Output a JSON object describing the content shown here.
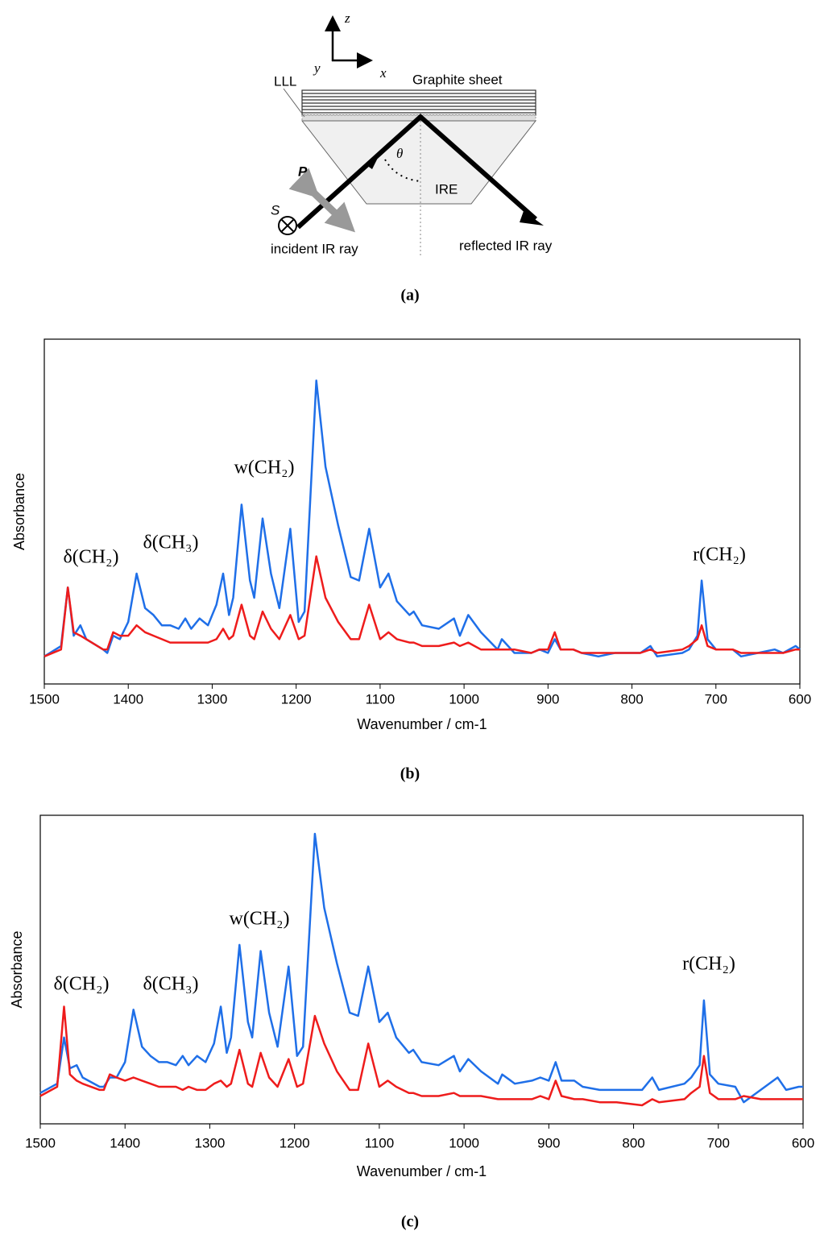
{
  "diagram": {
    "axis_z": "z",
    "axis_y": "y",
    "axis_x": "x",
    "graphite": "Graphite sheet",
    "lll": "LLL",
    "theta": "θ",
    "p": "P",
    "s": "S",
    "ire": "IRE",
    "incident": "incident IR ray",
    "reflected": "reflected IR ray"
  },
  "captions": [
    "(a)",
    "(b)",
    "(c)"
  ],
  "chart_data": [
    {
      "type": "line",
      "y_label": "Absorbance",
      "x_label": "Wavenumber / cm-1",
      "annotations": [
        "δ(CH₂)",
        "δ(CH₃)",
        "w(CH₂)",
        "r(CH₂)"
      ],
      "xlim": [
        1500,
        600
      ],
      "xticks": [
        1500,
        1400,
        1300,
        1200,
        1100,
        1000,
        900,
        800,
        700,
        600
      ],
      "ylim": [
        0,
        1
      ],
      "grid": false,
      "x": [
        1500,
        1480,
        1472,
        1465,
        1457,
        1450,
        1430,
        1425,
        1418,
        1410,
        1400,
        1390,
        1380,
        1370,
        1360,
        1350,
        1340,
        1332,
        1325,
        1315,
        1305,
        1295,
        1287,
        1280,
        1275,
        1265,
        1255,
        1250,
        1240,
        1230,
        1220,
        1207,
        1197,
        1190,
        1176,
        1165,
        1150,
        1135,
        1125,
        1113,
        1100,
        1090,
        1080,
        1065,
        1060,
        1050,
        1030,
        1012,
        1005,
        995,
        980,
        960,
        955,
        940,
        920,
        910,
        900,
        892,
        885,
        870,
        860,
        840,
        820,
        790,
        778,
        770,
        740,
        732,
        722,
        717,
        710,
        700,
        680,
        670,
        650,
        630,
        620,
        605,
        600
      ],
      "series": [
        {
          "color": "#1f6fe8",
          "values": [
            0.08,
            0.11,
            0.28,
            0.14,
            0.17,
            0.13,
            0.1,
            0.09,
            0.14,
            0.13,
            0.18,
            0.32,
            0.22,
            0.2,
            0.17,
            0.17,
            0.16,
            0.19,
            0.16,
            0.19,
            0.17,
            0.23,
            0.32,
            0.2,
            0.25,
            0.52,
            0.3,
            0.25,
            0.48,
            0.32,
            0.22,
            0.45,
            0.18,
            0.21,
            0.88,
            0.63,
            0.46,
            0.31,
            0.3,
            0.45,
            0.28,
            0.32,
            0.24,
            0.2,
            0.21,
            0.17,
            0.16,
            0.19,
            0.14,
            0.2,
            0.15,
            0.1,
            0.13,
            0.09,
            0.09,
            0.1,
            0.09,
            0.13,
            0.1,
            0.1,
            0.09,
            0.08,
            0.09,
            0.09,
            0.11,
            0.08,
            0.09,
            0.1,
            0.14,
            0.3,
            0.13,
            0.1,
            0.1,
            0.08,
            0.09,
            0.1,
            0.09,
            0.11,
            0.1
          ]
        },
        {
          "color": "#ee1c1c",
          "values": [
            0.08,
            0.1,
            0.28,
            0.15,
            0.14,
            0.13,
            0.1,
            0.1,
            0.15,
            0.14,
            0.14,
            0.17,
            0.15,
            0.14,
            0.13,
            0.12,
            0.12,
            0.12,
            0.12,
            0.12,
            0.12,
            0.13,
            0.16,
            0.13,
            0.14,
            0.23,
            0.14,
            0.13,
            0.21,
            0.16,
            0.13,
            0.2,
            0.13,
            0.14,
            0.37,
            0.25,
            0.18,
            0.13,
            0.13,
            0.23,
            0.13,
            0.15,
            0.13,
            0.12,
            0.12,
            0.11,
            0.11,
            0.12,
            0.11,
            0.12,
            0.1,
            0.1,
            0.1,
            0.1,
            0.09,
            0.1,
            0.1,
            0.15,
            0.1,
            0.1,
            0.09,
            0.09,
            0.09,
            0.09,
            0.1,
            0.09,
            0.1,
            0.11,
            0.13,
            0.17,
            0.11,
            0.1,
            0.1,
            0.09,
            0.09,
            0.09,
            0.09,
            0.1,
            0.1
          ]
        }
      ]
    },
    {
      "type": "line",
      "y_label": "Absorbance",
      "x_label": "Wavenumber  / cm-1",
      "annotations": [
        "δ(CH₂)",
        "δ(CH₃)",
        "w(CH₂)",
        "r(CH₂)"
      ],
      "xlim": [
        1500,
        600
      ],
      "xticks": [
        1500,
        1400,
        1300,
        1200,
        1100,
        1000,
        900,
        800,
        700,
        600
      ],
      "ylim": [
        0,
        1
      ],
      "grid": false,
      "x": [
        1500,
        1480,
        1472,
        1465,
        1457,
        1450,
        1430,
        1425,
        1418,
        1410,
        1400,
        1390,
        1380,
        1370,
        1360,
        1350,
        1340,
        1332,
        1325,
        1315,
        1305,
        1295,
        1287,
        1280,
        1275,
        1265,
        1255,
        1250,
        1240,
        1230,
        1220,
        1207,
        1197,
        1190,
        1176,
        1165,
        1150,
        1135,
        1125,
        1113,
        1100,
        1090,
        1080,
        1065,
        1060,
        1050,
        1030,
        1012,
        1005,
        995,
        980,
        960,
        955,
        940,
        920,
        910,
        900,
        892,
        885,
        870,
        860,
        840,
        820,
        790,
        778,
        770,
        740,
        732,
        722,
        717,
        710,
        700,
        680,
        670,
        650,
        630,
        620,
        605,
        600
      ],
      "series": [
        {
          "color": "#1f6fe8",
          "values": [
            0.1,
            0.13,
            0.28,
            0.18,
            0.19,
            0.15,
            0.12,
            0.12,
            0.15,
            0.15,
            0.2,
            0.37,
            0.25,
            0.22,
            0.2,
            0.2,
            0.19,
            0.22,
            0.19,
            0.22,
            0.2,
            0.26,
            0.38,
            0.23,
            0.28,
            0.58,
            0.33,
            0.28,
            0.56,
            0.36,
            0.25,
            0.51,
            0.22,
            0.25,
            0.94,
            0.7,
            0.52,
            0.36,
            0.35,
            0.51,
            0.33,
            0.36,
            0.28,
            0.23,
            0.24,
            0.2,
            0.19,
            0.22,
            0.17,
            0.21,
            0.17,
            0.13,
            0.16,
            0.13,
            0.14,
            0.15,
            0.14,
            0.2,
            0.14,
            0.14,
            0.12,
            0.11,
            0.11,
            0.11,
            0.15,
            0.11,
            0.13,
            0.15,
            0.19,
            0.4,
            0.16,
            0.13,
            0.12,
            0.07,
            0.11,
            0.15,
            0.11,
            0.12,
            0.12
          ]
        },
        {
          "color": "#ee1c1c",
          "values": [
            0.09,
            0.12,
            0.38,
            0.16,
            0.14,
            0.13,
            0.11,
            0.11,
            0.16,
            0.15,
            0.14,
            0.15,
            0.14,
            0.13,
            0.12,
            0.12,
            0.12,
            0.11,
            0.12,
            0.11,
            0.11,
            0.13,
            0.14,
            0.12,
            0.13,
            0.24,
            0.13,
            0.12,
            0.23,
            0.15,
            0.12,
            0.21,
            0.12,
            0.13,
            0.35,
            0.26,
            0.17,
            0.11,
            0.11,
            0.26,
            0.12,
            0.14,
            0.12,
            0.1,
            0.1,
            0.09,
            0.09,
            0.1,
            0.09,
            0.09,
            0.09,
            0.08,
            0.08,
            0.08,
            0.08,
            0.09,
            0.08,
            0.14,
            0.09,
            0.08,
            0.08,
            0.07,
            0.07,
            0.06,
            0.08,
            0.07,
            0.08,
            0.1,
            0.12,
            0.22,
            0.1,
            0.08,
            0.08,
            0.09,
            0.08,
            0.08,
            0.08,
            0.08,
            0.08
          ]
        }
      ]
    }
  ]
}
